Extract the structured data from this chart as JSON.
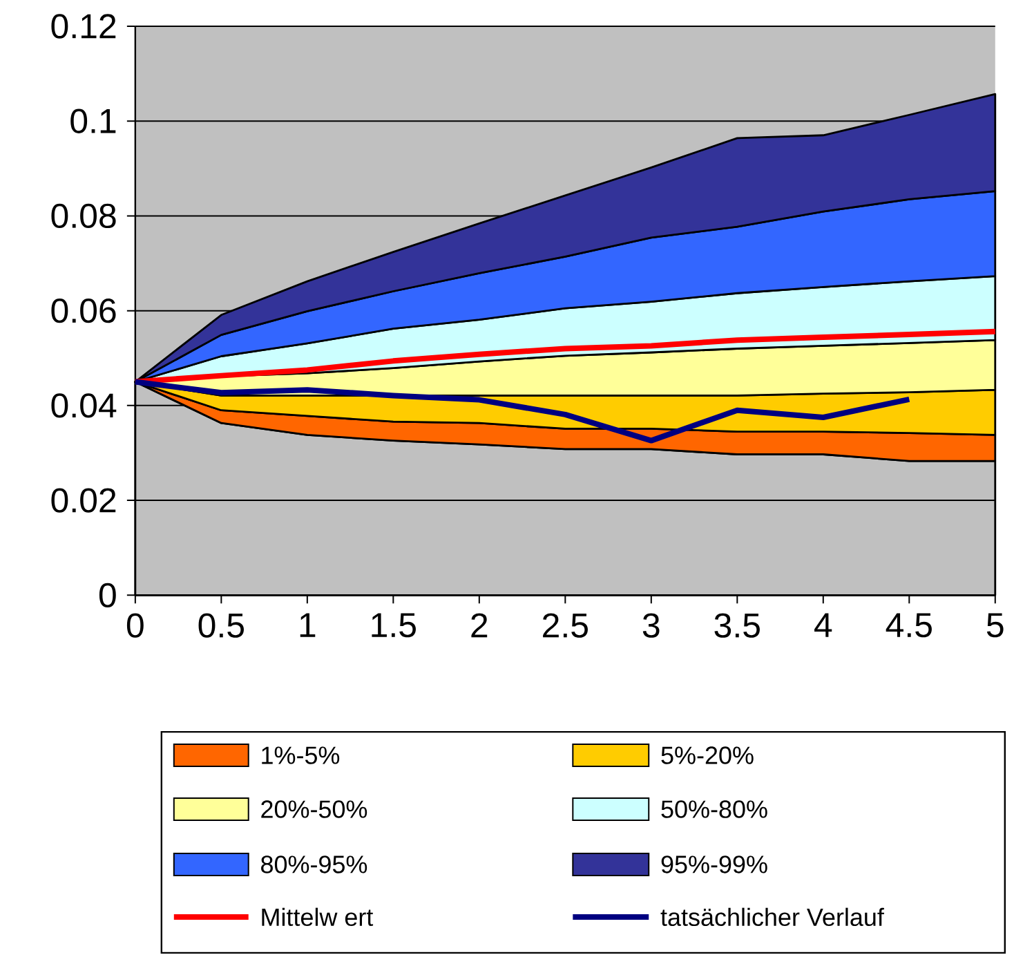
{
  "chart_data": {
    "type": "area",
    "stacked": true,
    "x": [
      0,
      0.5,
      1,
      1.5,
      2,
      2.5,
      3,
      3.5,
      4,
      4.5,
      5
    ],
    "series": [
      {
        "color": "#c0c0c0",
        "values": [
          0.045,
          0.0363,
          0.0338,
          0.0326,
          0.0318,
          0.0308,
          0.0308,
          0.0297,
          0.0297,
          0.0283,
          0.0283
        ]
      },
      {
        "name": "1%-5%",
        "color": "#ff6600",
        "values": [
          0,
          0.0027,
          0.004,
          0.004,
          0.0045,
          0.0043,
          0.0043,
          0.0048,
          0.0048,
          0.0059,
          0.0055
        ]
      },
      {
        "name": "5%-20%",
        "color": "#ffcc00",
        "values": [
          0,
          0.0031,
          0.0043,
          0.0055,
          0.0058,
          0.007,
          0.007,
          0.0076,
          0.008,
          0.0086,
          0.0095
        ]
      },
      {
        "name": "20%-50%",
        "color": "#ffff99",
        "values": [
          0,
          0.0041,
          0.0047,
          0.0058,
          0.0072,
          0.0084,
          0.0091,
          0.0099,
          0.0101,
          0.0104,
          0.0105
        ]
      },
      {
        "name": "50%-80%",
        "color": "#ccffff",
        "values": [
          0,
          0.0042,
          0.0063,
          0.0083,
          0.0088,
          0.01,
          0.0107,
          0.0117,
          0.0124,
          0.013,
          0.0135
        ]
      },
      {
        "name": "80%-95%",
        "color": "#3366ff",
        "values": [
          0,
          0.0045,
          0.0068,
          0.0079,
          0.0098,
          0.0109,
          0.0135,
          0.014,
          0.0159,
          0.0173,
          0.0179
        ]
      },
      {
        "name": "95%-99%",
        "color": "#333399",
        "values": [
          0,
          0.0042,
          0.0063,
          0.0083,
          0.0105,
          0.0129,
          0.0148,
          0.0187,
          0.0161,
          0.0178,
          0.0205
        ]
      },
      {
        "name": "Mittelw ert",
        "type": "line",
        "color": "#ff0000",
        "values": [
          0.045,
          0.0463,
          0.0475,
          0.0494,
          0.0508,
          0.052,
          0.0526,
          0.0538,
          0.0544,
          0.055,
          0.0556
        ]
      },
      {
        "name": "tatsächlicher Verlauf",
        "type": "line",
        "color": "#000080",
        "values": [
          0.045,
          0.0427,
          0.0433,
          0.0421,
          0.0412,
          0.0381,
          0.0326,
          0.039,
          0.0375,
          0.0413,
          null
        ]
      }
    ],
    "xlim": [
      0,
      5
    ],
    "ylim": [
      0,
      0.12
    ],
    "xticks": [
      0,
      0.5,
      1,
      1.5,
      2,
      2.5,
      3,
      3.5,
      4,
      4.5,
      5
    ],
    "yticks": [
      0,
      0.02,
      0.04,
      0.06,
      0.08,
      0.1,
      0.12
    ],
    "grid": "y",
    "legend": "bottom",
    "marker": "none",
    "line_style": "solid"
  }
}
